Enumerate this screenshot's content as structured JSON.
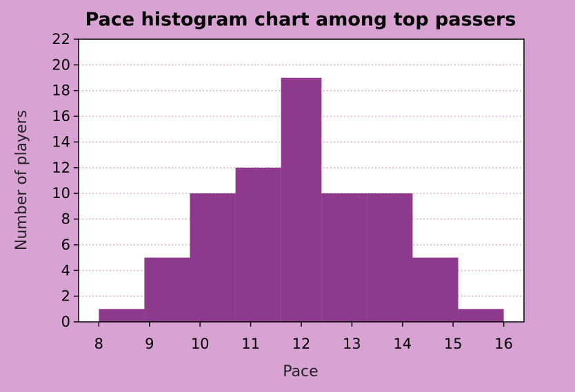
{
  "chart_data": {
    "type": "bar",
    "title": "Pace histogram chart among top passers",
    "xlabel": "Pace",
    "ylabel": "Number of players",
    "bins": [
      {
        "start": 8.0,
        "end": 8.9,
        "value": 1
      },
      {
        "start": 8.9,
        "end": 9.8,
        "value": 5
      },
      {
        "start": 9.8,
        "end": 10.7,
        "value": 10
      },
      {
        "start": 10.7,
        "end": 11.6,
        "value": 12
      },
      {
        "start": 11.6,
        "end": 12.4,
        "value": 19
      },
      {
        "start": 12.4,
        "end": 13.3,
        "value": 10
      },
      {
        "start": 13.3,
        "end": 14.2,
        "value": 10
      },
      {
        "start": 14.2,
        "end": 15.1,
        "value": 5
      },
      {
        "start": 15.1,
        "end": 16.0,
        "value": 1
      }
    ],
    "xticks": [
      8,
      9,
      10,
      11,
      12,
      13,
      14,
      15,
      16
    ],
    "yticks": [
      0,
      2,
      4,
      6,
      8,
      10,
      12,
      14,
      16,
      18,
      20,
      22
    ],
    "xlim": [
      7.6,
      16.4
    ],
    "ylim": [
      0,
      22
    ],
    "grid": "horizontal-dotted",
    "colors": {
      "figure_background": "#D8A3D3",
      "plot_background": "#FFFFFF",
      "bar_fill": "#8E3A8C",
      "grid": "#D9AED6"
    }
  }
}
